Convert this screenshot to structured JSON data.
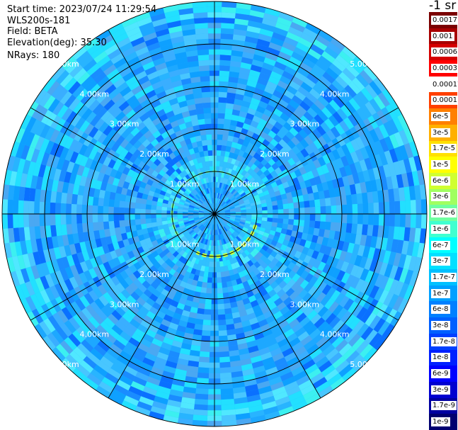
{
  "header": {
    "start_time": "Start time: 2023/07/24 11:29:54",
    "instrument": "WLS200s-181",
    "field": "Field: BETA",
    "elevation": "Elevation(deg): 35.30",
    "nrays": "NRays: 180"
  },
  "colorbar": {
    "unit_label": "-1 sr",
    "labels": [
      "0.0017",
      "0.001",
      "0.0006",
      "0.0003",
      "0.00017",
      "0.0001",
      "6e-5",
      "3e-5",
      "1.7e-5",
      "1e-5",
      "6e-6",
      "3e-6",
      "1.7e-6",
      "1e-6",
      "6e-7",
      "3e-7",
      "1.7e-7",
      "1e-7",
      "6e-8",
      "3e-8",
      "1.7e-8",
      "1e-8",
      "6e-9",
      "3e-9",
      "1.7e-9",
      "1e-9"
    ],
    "colors": [
      "#7a0000",
      "#a80000",
      "#d40000",
      "#ff0000",
      "#ffffff",
      "#ff4000",
      "#ff8000",
      "#ffb000",
      "#ffe000",
      "#ffff00",
      "#d0ff30",
      "#a0ff60",
      "#70ffa0",
      "#40ffd0",
      "#00ffff",
      "#00e0ff",
      "#00c0ff",
      "#00a0ff",
      "#0080ff",
      "#0060ff",
      "#0040ff",
      "#0020ff",
      "#0000ff",
      "#0000d0",
      "#0000a0",
      "#000070"
    ]
  },
  "chart_data": {
    "type": "polar-ppi",
    "title": "",
    "field": "BETA",
    "units": "sr-1",
    "elevation_deg": 35.3,
    "nrays": 180,
    "range_rings_km": [
      1,
      2,
      3,
      4,
      5
    ],
    "ring_labels": [
      "1.00km",
      "2.00km",
      "3.00km",
      "4.00km",
      "5.00km"
    ],
    "radial_spokes_deg": [
      0,
      30,
      60,
      90,
      120,
      150,
      180,
      210,
      240,
      270,
      300,
      330
    ],
    "max_range_km": 5.0,
    "background_beta": "3e-8 to 1.7e-7",
    "arc_feature": {
      "range_km": 1.0,
      "beta": "6e-7 to 1e-6"
    }
  }
}
